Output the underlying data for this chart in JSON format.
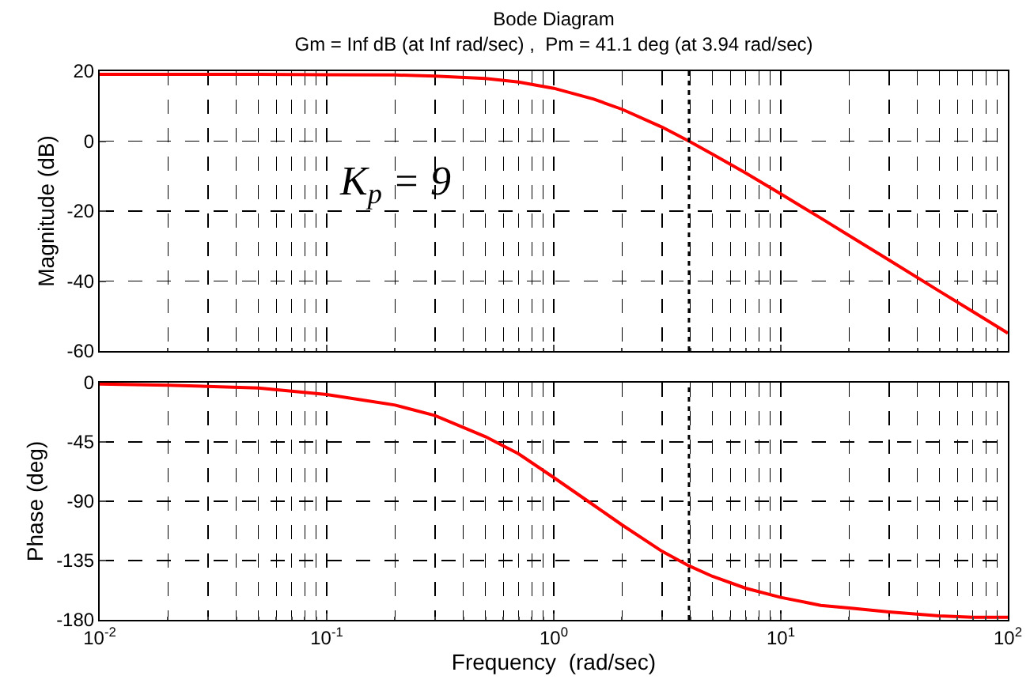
{
  "chart_data": [
    {
      "type": "line",
      "title": "Bode Diagram",
      "subtitle": "Gm = Inf dB (at Inf rad/sec) ,  Pm = 41.1 deg (at 3.94 rad/sec)",
      "ylabel": "Magnitude (dB)",
      "log": "x",
      "grid": true,
      "tick_labels": "y",
      "line_style": "solid",
      "annotations": [
        "K$_{p}$ = 9"
      ],
      "x": [
        0.01,
        0.02,
        0.05,
        0.1,
        0.2,
        0.3,
        0.5,
        0.7,
        1,
        1.5,
        2,
        3,
        3.94,
        5,
        7,
        10,
        15,
        20,
        30,
        50,
        70,
        100
      ],
      "series": [
        {
          "color": "#ff0000",
          "values": [
            19.1,
            19.1,
            19.1,
            19.0,
            18.9,
            18.6,
            17.9,
            16.9,
            15.1,
            12.0,
            9.1,
            4.0,
            0,
            -3.7,
            -9.1,
            -15.1,
            -22.0,
            -27.0,
            -34.0,
            -42.9,
            -48.7,
            -54.9
          ]
        }
      ],
      "xlim": [
        0.01,
        100
      ],
      "xticks": [
        {
          "value": 0.01,
          "label": null
        },
        {
          "value": 0.1,
          "label": null
        },
        {
          "value": 1,
          "label": null
        },
        {
          "value": 10,
          "label": null
        },
        {
          "value": 100,
          "label": null
        }
      ],
      "ylim": [
        -60,
        20
      ],
      "yticks": [
        -60,
        -40,
        -20,
        0,
        20
      ],
      "ref_lines": [
        {
          "axis": "x",
          "value": 3.94,
          "color": "#000000",
          "line_style": "dotted"
        }
      ]
    },
    {
      "type": "line",
      "xlabel": "Frequency  (rad/sec)",
      "ylabel": "Phase (deg)",
      "log": "x",
      "grid": true,
      "line_style": "solid",
      "x": [
        0.01,
        0.02,
        0.05,
        0.1,
        0.2,
        0.3,
        0.5,
        0.7,
        1,
        1.5,
        2,
        3,
        3.94,
        5,
        7,
        10,
        15,
        20,
        30,
        50,
        70,
        100
      ],
      "series": [
        {
          "color": "#ff0000",
          "values": [
            -1,
            -2,
            -4,
            -9,
            -17,
            -25,
            -41,
            -54,
            -72,
            -93,
            -108,
            -128,
            -139,
            -147,
            -156,
            -163,
            -169,
            -171,
            -174,
            -177,
            -178,
            -178
          ]
        }
      ],
      "xlim": [
        0.01,
        100
      ],
      "xticks": [
        {
          "value": 0.01,
          "label": "10$^{-2}$"
        },
        {
          "value": 0.1,
          "label": "10$^{-1}$"
        },
        {
          "value": 1,
          "label": "10$^{0}$"
        },
        {
          "value": 10,
          "label": "10$^{1}$"
        },
        {
          "value": 100,
          "label": "10$^{2}$"
        }
      ],
      "ylim": [
        -180,
        0
      ],
      "yticks": [
        -180,
        -135,
        -90,
        -45,
        0
      ],
      "ref_lines": [
        {
          "axis": "x",
          "value": 3.94,
          "color": "#000000",
          "line_style": "dotted"
        }
      ]
    }
  ]
}
